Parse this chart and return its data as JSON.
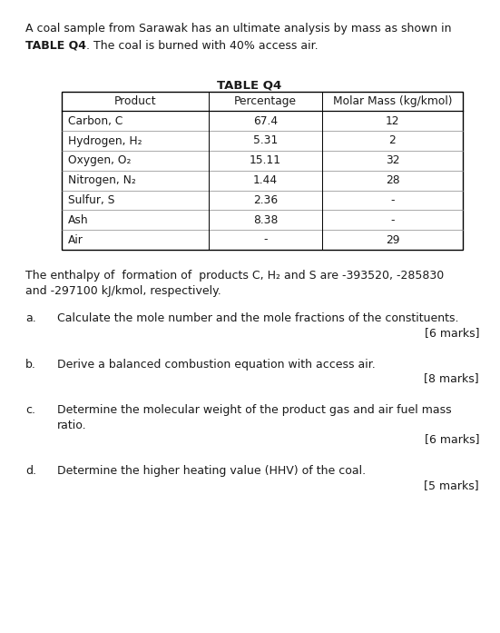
{
  "intro_line1": "A coal sample from Sarawak has an ultimate analysis by mass as shown in",
  "intro_bold": "TABLE Q4",
  "intro_normal": ". The coal is burned with 40% access air.",
  "table_title": "TABLE Q4",
  "table_headers": [
    "Product",
    "Percentage",
    "Molar Mass (kg/kmol)"
  ],
  "table_rows": [
    [
      "Carbon, C",
      "67.4",
      "12"
    ],
    [
      "Hydrogen, H₂",
      "5.31",
      "2"
    ],
    [
      "Oxygen, O₂",
      "15.11",
      "32"
    ],
    [
      "Nitrogen, N₂",
      "1.44",
      "28"
    ],
    [
      "Sulfur, S",
      "2.36",
      "-"
    ],
    [
      "Ash",
      "8.38",
      "-"
    ],
    [
      "Air",
      "-",
      "29"
    ]
  ],
  "enthalpy_line1": "The enthalpy of  formation of  products C, H₂ and S are -393520, -285830",
  "enthalpy_line2": "and -297100 kJ/kmol, respectively.",
  "questions": [
    {
      "label": "a.",
      "text_lines": [
        "Calculate the mole number and the mole fractions of the constituents."
      ],
      "marks": "[6 marks]"
    },
    {
      "label": "b.",
      "text_lines": [
        "Derive a balanced combustion equation with access air."
      ],
      "marks": "[8 marks]"
    },
    {
      "label": "c.",
      "text_lines": [
        "Determine the molecular weight of the product gas and air fuel mass",
        "ratio."
      ],
      "marks": "[6 marks]"
    },
    {
      "label": "d.",
      "text_lines": [
        "Determine the higher heating value (HHV) of the coal."
      ],
      "marks": "[5 marks]"
    }
  ],
  "bg_color": "#ffffff",
  "text_color": "#1a1a1a",
  "fs_body": 9.0,
  "fs_table": 8.8,
  "fs_title": 9.5,
  "fig_w": 5.51,
  "fig_h": 6.97,
  "dpi": 100
}
